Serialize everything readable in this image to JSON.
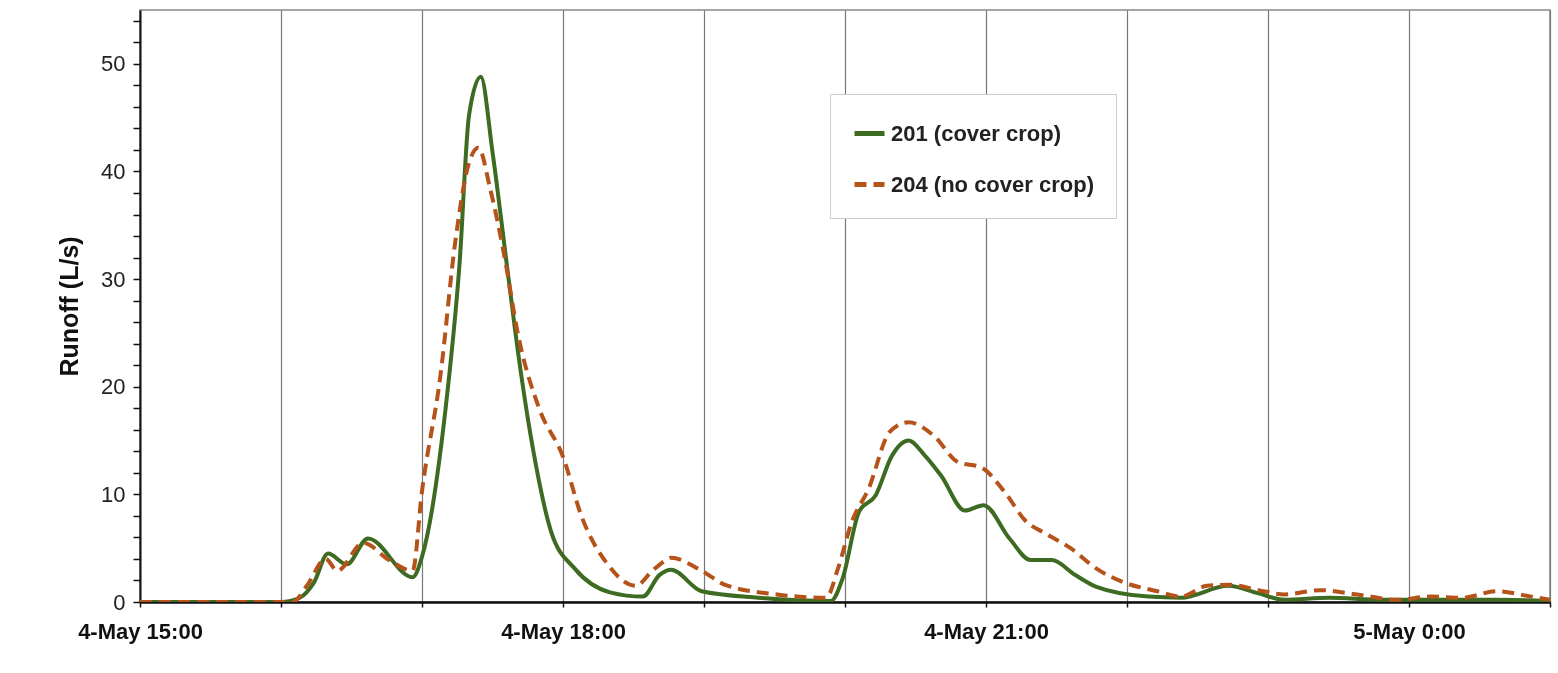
{
  "chart_data": {
    "type": "line",
    "ylabel": "Runoff (L/s)",
    "xlim": [
      "--05-04T15:00",
      "--05-05T01:00"
    ],
    "ylim": [
      0,
      55
    ],
    "xticks": [
      {
        "value": "--05-04T15:00",
        "label": "4-May 15:00"
      },
      {
        "value": "--05-04T16:00",
        "label": null
      },
      {
        "value": "--05-04T17:00",
        "label": null
      },
      {
        "value": "--05-04T18:00",
        "label": "4-May 18:00"
      },
      {
        "value": "--05-04T19:00",
        "label": null
      },
      {
        "value": "--05-04T20:00",
        "label": null
      },
      {
        "value": "--05-04T21:00",
        "label": "4-May 21:00"
      },
      {
        "value": "--05-04T22:00",
        "label": null
      },
      {
        "value": "--05-04T23:00",
        "label": null
      },
      {
        "value": "--05-05T00:00",
        "label": "5-May 0:00"
      },
      {
        "value": "--05-05T01:00",
        "label": null
      }
    ],
    "yticks": [
      0,
      {
        "value": 2,
        "label": null
      },
      {
        "value": 4,
        "label": null
      },
      {
        "value": 6,
        "label": null
      },
      {
        "value": 8,
        "label": null
      },
      10,
      {
        "value": 12,
        "label": null
      },
      {
        "value": 14,
        "label": null
      },
      {
        "value": 16,
        "label": null
      },
      {
        "value": 18,
        "label": null
      },
      20,
      {
        "value": 22,
        "label": null
      },
      {
        "value": 24,
        "label": null
      },
      {
        "value": 26,
        "label": null
      },
      {
        "value": 28,
        "label": null
      },
      30,
      {
        "value": 32,
        "label": null
      },
      {
        "value": 34,
        "label": null
      },
      {
        "value": 36,
        "label": null
      },
      {
        "value": 38,
        "label": null
      },
      40,
      {
        "value": 42,
        "label": null
      },
      {
        "value": 44,
        "label": null
      },
      {
        "value": 46,
        "label": null
      },
      {
        "value": 48,
        "label": null
      },
      50,
      {
        "value": 52,
        "label": null
      },
      {
        "value": 54,
        "label": null
      }
    ],
    "grid": "x",
    "legend": "top right",
    "series": [
      {
        "name": "201 (cover crop)",
        "color": "#3d6b21",
        "line_style": "solid",
        "x": [
          "--05-04T15:00",
          "--05-04T16:00",
          "--05-04T16:08",
          "--05-04T16:14",
          "--05-04T16:20",
          "--05-04T16:28",
          "--05-04T16:37",
          "--05-04T16:56",
          "--05-04T17:00",
          "--05-04T17:10",
          "--05-04T17:16",
          "--05-04T17:20",
          "--05-04T17:25",
          "--05-04T17:30",
          "--05-04T17:36",
          "--05-04T17:41",
          "--05-04T17:47",
          "--05-04T17:55",
          "--05-04T18:05",
          "--05-04T18:20",
          "--05-04T18:34",
          "--05-04T18:41",
          "--05-04T18:46",
          "--05-04T18:59",
          "--05-04T19:23",
          "--05-04T19:54",
          "--05-04T19:59",
          "--05-04T20:06",
          "--05-04T20:13",
          "--05-04T20:20",
          "--05-04T20:27",
          "--05-04T20:34",
          "--05-04T20:41",
          "--05-04T20:51",
          "--05-04T20:59",
          "--05-04T21:10",
          "--05-04T21:19",
          "--05-04T21:28",
          "--05-04T21:38",
          "--05-04T21:47",
          "--05-04T22:09",
          "--05-04T22:23",
          "--05-04T22:43",
          "--05-04T22:56",
          "--05-04T23:07",
          "--05-04T23:26",
          "--05-04T23:48",
          "--05-05T00:09",
          "--05-05T00:37",
          "--05-05T01:00"
        ],
        "values": [
          0,
          0,
          0.4,
          1.8,
          4.5,
          3.5,
          5.9,
          2.3,
          4.2,
          17.9,
          31.5,
          45.2,
          48.8,
          41.8,
          31.5,
          23,
          14.5,
          6.5,
          3.1,
          0.9,
          0.5,
          2.5,
          3.0,
          1.0,
          0.4,
          0.1,
          2.2,
          8.4,
          9.9,
          13.6,
          15.0,
          13.6,
          11.7,
          8.5,
          9.0,
          5.9,
          3.9,
          3.9,
          2.5,
          1.4,
          0.5,
          0.4,
          1.5,
          0.8,
          0.2,
          0.4,
          0.2,
          0.2,
          0.2,
          0.1
        ]
      },
      {
        "name": "204 (no cover crop)",
        "color": "#b5531a",
        "line_style": "dashed",
        "x": [
          "--05-04T15:00",
          "--05-04T16:05",
          "--05-04T16:11",
          "--05-04T16:19",
          "--05-04T16:24",
          "--05-04T16:35",
          "--05-04T16:46",
          "--05-04T16:56",
          "--05-04T17:00",
          "--05-04T17:08",
          "--05-04T17:14",
          "--05-04T17:20",
          "--05-04T17:24",
          "--05-04T17:29",
          "--05-04T17:35",
          "--05-04T17:41",
          "--05-04T17:50",
          "--05-04T18:00",
          "--05-04T18:08",
          "--05-04T18:19",
          "--05-04T18:31",
          "--05-04T18:38",
          "--05-04T18:44",
          "--05-04T18:46",
          "--05-04T18:59",
          "--05-04T19:09",
          "--05-04T19:31",
          "--05-04T19:52",
          "--05-04T19:57",
          "--05-04T20:03",
          "--05-04T20:10",
          "--05-04T20:19",
          "--05-04T20:27",
          "--05-04T20:38",
          "--05-04T20:48",
          "--05-04T20:58",
          "--05-04T21:08",
          "--05-04T21:17",
          "--05-04T21:25",
          "--05-04T21:36",
          "--05-04T21:47",
          "--05-04T21:59",
          "--05-04T22:13",
          "--05-04T22:23",
          "--05-04T22:34",
          "--05-04T22:44",
          "--05-04T22:56",
          "--05-04T23:07",
          "--05-04T23:22",
          "--05-04T23:38",
          "--05-04T23:55",
          "--05-05T00:09",
          "--05-05T00:23",
          "--05-05T00:37",
          "--05-05T00:52",
          "--05-05T01:00"
        ],
        "values": [
          0,
          0,
          1.5,
          4.0,
          2.9,
          5.5,
          3.9,
          2.9,
          10.3,
          21.3,
          33.2,
          40.8,
          42.2,
          38.4,
          32.2,
          24.7,
          17.9,
          13.5,
          7.9,
          3.5,
          1.5,
          2.9,
          3.9,
          4.1,
          2.9,
          1.6,
          0.7,
          0.4,
          3.1,
          7.5,
          10.5,
          15.8,
          16.7,
          15.4,
          13,
          12.5,
          10.2,
          7.5,
          6.4,
          5.0,
          3.1,
          1.8,
          1.0,
          0.5,
          1.5,
          1.6,
          1.1,
          0.7,
          1.1,
          0.7,
          0.2,
          0.5,
          0.4,
          1.0,
          0.5,
          0.2
        ]
      }
    ]
  }
}
